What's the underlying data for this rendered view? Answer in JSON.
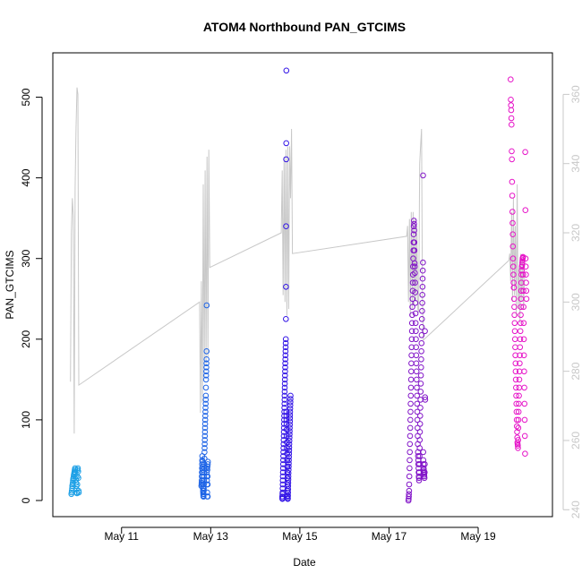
{
  "chart_data": {
    "type": "scatter",
    "title": "ATOM4 Northbound PAN_GTCIMS",
    "xlabel": "Date",
    "ylabel": "PAN_GTCIMS",
    "x_range": [
      "2019-05-09T11:00",
      "2019-05-20T16:00"
    ],
    "x_ticks": [
      {
        "date": "2019-05-11",
        "label": "May 11"
      },
      {
        "date": "2019-05-13",
        "label": "May 13"
      },
      {
        "date": "2019-05-15",
        "label": "May 15"
      },
      {
        "date": "2019-05-17",
        "label": "May 17"
      },
      {
        "date": "2019-05-19",
        "label": "May 19"
      }
    ],
    "ylim": [
      -20,
      555
    ],
    "y_ticks": [
      0,
      100,
      200,
      300,
      400,
      500
    ],
    "y2lim": [
      238,
      372
    ],
    "y2_ticks": [
      240,
      260,
      280,
      300,
      320,
      340,
      360
    ],
    "grid": false,
    "colors": {
      "frame": "#000000",
      "secondary_axis": "#c8c8c8",
      "secondary_line": "#c8c8c8"
    },
    "series": [
      {
        "color": "#1ea0e6",
        "x_start": "2019-05-09T21:00",
        "x_end": "2019-05-10T01:00",
        "values": [
          8,
          10,
          12,
          15,
          18,
          20,
          22,
          25,
          27,
          28,
          30,
          32,
          33,
          35,
          36,
          38,
          40,
          38,
          35,
          30,
          26,
          22,
          18,
          14,
          10,
          9,
          20,
          30,
          38,
          40,
          36,
          28,
          12,
          10
        ]
      },
      {
        "color": "#1e64e6",
        "x_start": "2019-05-12T19:00",
        "x_end": "2019-05-12T22:30",
        "values": [
          18,
          20,
          22,
          25,
          30,
          35,
          40,
          45,
          50,
          55,
          48,
          42,
          38,
          35,
          30,
          25,
          20,
          15,
          12,
          10,
          8,
          6,
          5,
          5,
          8,
          12,
          15,
          20,
          25,
          30,
          35,
          40,
          45,
          52,
          60,
          65,
          70,
          75,
          80,
          85,
          90,
          95,
          100,
          105,
          110,
          115,
          120,
          125,
          130,
          140,
          150,
          155,
          160,
          165,
          170,
          175,
          185,
          242,
          40,
          35,
          30,
          25,
          20,
          10,
          5,
          38,
          42,
          30,
          20,
          5,
          45,
          48
        ]
      },
      {
        "color": "#3214e6",
        "x_start": "2019-05-14T14:30",
        "x_end": "2019-05-14T19:00",
        "values": [
          5,
          3,
          2,
          8,
          10,
          15,
          20,
          25,
          30,
          35,
          40,
          45,
          50,
          55,
          60,
          65,
          70,
          75,
          80,
          85,
          90,
          95,
          100,
          105,
          110,
          115,
          120,
          125,
          130,
          135,
          140,
          145,
          150,
          155,
          160,
          165,
          170,
          175,
          180,
          185,
          190,
          195,
          200,
          225,
          265,
          340,
          423,
          443,
          533,
          110,
          105,
          100,
          95,
          88,
          80,
          72,
          65,
          58,
          50,
          42,
          35,
          28,
          20,
          12,
          5,
          2,
          3,
          6,
          10,
          14,
          18,
          22,
          26,
          30,
          34,
          38,
          42,
          46,
          50,
          54,
          58,
          62,
          66,
          70,
          74,
          78,
          82,
          86,
          90,
          94,
          98,
          102,
          106,
          110,
          114,
          118,
          122,
          126,
          130
        ]
      },
      {
        "color": "#8214c8",
        "x_start": "2019-05-17T10:30",
        "x_end": "2019-05-17T19:30",
        "values": [
          0,
          2,
          5,
          8,
          12,
          20,
          30,
          40,
          50,
          60,
          70,
          80,
          90,
          100,
          110,
          120,
          130,
          140,
          150,
          160,
          170,
          180,
          190,
          200,
          210,
          220,
          230,
          240,
          250,
          260,
          270,
          280,
          290,
          300,
          310,
          320,
          330,
          340,
          347,
          343,
          335,
          320,
          310,
          294,
          290,
          282,
          270,
          258,
          245,
          232,
          220,
          210,
          200,
          190,
          180,
          170,
          160,
          150,
          140,
          130,
          120,
          110,
          100,
          90,
          80,
          70,
          60,
          55,
          50,
          45,
          40,
          35,
          30,
          28,
          25,
          35,
          45,
          55,
          65,
          75,
          85,
          95,
          105,
          115,
          125,
          135,
          145,
          155,
          165,
          175,
          185,
          195,
          205,
          215,
          225,
          235,
          245,
          255,
          265,
          275,
          285,
          295,
          403,
          60,
          50,
          45,
          40,
          38,
          36,
          34,
          32,
          30,
          28,
          35,
          45,
          210,
          128,
          125
        ]
      },
      {
        "color": "#e614c8",
        "x_start": "2019-05-19T17:30",
        "x_end": "2019-05-20T02:00",
        "values": [
          522,
          497,
          490,
          484,
          474,
          466,
          433,
          423,
          395,
          378,
          358,
          344,
          330,
          315,
          300,
          290,
          280,
          270,
          264,
          264,
          250,
          240,
          230,
          220,
          210,
          200,
          190,
          180,
          170,
          160,
          150,
          140,
          130,
          120,
          110,
          100,
          92,
          85,
          78,
          72,
          70,
          68,
          65,
          75,
          90,
          100,
          110,
          120,
          130,
          140,
          150,
          160,
          170,
          180,
          190,
          200,
          210,
          220,
          230,
          240,
          250,
          260,
          270,
          280,
          285,
          290,
          292,
          295,
          298,
          300,
          301,
          302,
          280,
          260,
          240,
          220,
          200,
          180,
          160,
          140,
          120,
          100,
          80,
          58,
          432,
          360,
          300,
          290,
          280,
          270,
          260,
          250
        ]
      }
    ],
    "secondary_line": {
      "points": [
        [
          "2019-05-09T20:30",
          277
        ],
        [
          "2019-05-09T21:00",
          320
        ],
        [
          "2019-05-09T21:30",
          330
        ],
        [
          "2019-05-09T22:00",
          325
        ],
        [
          "2019-05-09T22:30",
          262
        ],
        [
          "2019-05-09T23:00",
          333
        ],
        [
          "2019-05-09T23:30",
          350
        ],
        [
          "2019-05-10T00:00",
          362
        ],
        [
          "2019-05-10T00:30",
          360
        ],
        [
          "2019-05-10T01:00",
          276
        ],
        [
          "2019-05-12T18:00",
          300
        ],
        [
          "2019-05-12T18:30",
          268
        ],
        [
          "2019-05-12T19:00",
          306
        ],
        [
          "2019-05-12T19:30",
          271
        ],
        [
          "2019-05-12T20:00",
          334
        ],
        [
          "2019-05-12T20:30",
          278
        ],
        [
          "2019-05-12T21:00",
          338
        ],
        [
          "2019-05-12T21:30",
          282
        ],
        [
          "2019-05-12T22:00",
          342
        ],
        [
          "2019-05-12T22:30",
          284
        ],
        [
          "2019-05-12T23:00",
          344
        ],
        [
          "2019-05-12T23:30",
          310
        ],
        [
          "2019-05-14T14:00",
          320
        ],
        [
          "2019-05-14T14:30",
          338
        ],
        [
          "2019-05-14T15:00",
          302
        ],
        [
          "2019-05-14T15:30",
          342
        ],
        [
          "2019-05-14T16:00",
          300
        ],
        [
          "2019-05-14T16:30",
          344
        ],
        [
          "2019-05-14T17:00",
          296
        ],
        [
          "2019-05-14T17:30",
          345
        ],
        [
          "2019-05-14T18:00",
          298
        ],
        [
          "2019-05-14T18:30",
          345
        ],
        [
          "2019-05-14T19:00",
          330
        ],
        [
          "2019-05-14T19:30",
          350
        ],
        [
          "2019-05-14T20:00",
          314
        ],
        [
          "2019-05-17T09:30",
          319
        ],
        [
          "2019-05-17T10:00",
          322
        ],
        [
          "2019-05-17T10:30",
          300
        ],
        [
          "2019-05-17T11:00",
          324
        ],
        [
          "2019-05-17T11:30",
          296
        ],
        [
          "2019-05-17T12:00",
          326
        ],
        [
          "2019-05-17T12:30",
          298
        ],
        [
          "2019-05-17T13:00",
          326
        ],
        [
          "2019-05-17T13:30",
          299
        ],
        [
          "2019-05-17T14:00",
          324
        ],
        [
          "2019-05-17T14:30",
          300
        ],
        [
          "2019-05-17T15:00",
          322
        ],
        [
          "2019-05-17T15:30",
          298
        ],
        [
          "2019-05-17T16:00",
          297
        ],
        [
          "2019-05-17T16:30",
          340
        ],
        [
          "2019-05-17T17:00",
          345
        ],
        [
          "2019-05-17T17:30",
          350
        ],
        [
          "2019-05-17T18:00",
          300
        ],
        [
          "2019-05-17T18:30",
          289
        ],
        [
          "2019-05-19T16:30",
          312
        ],
        [
          "2019-05-19T17:00",
          314
        ],
        [
          "2019-05-19T17:30",
          306
        ],
        [
          "2019-05-19T18:00",
          326
        ],
        [
          "2019-05-19T18:30",
          300
        ],
        [
          "2019-05-19T19:00",
          330
        ],
        [
          "2019-05-19T19:30",
          302
        ],
        [
          "2019-05-19T20:00",
          322
        ],
        [
          "2019-05-19T20:30",
          296
        ],
        [
          "2019-05-19T21:00",
          334
        ],
        [
          "2019-05-19T21:30",
          298
        ],
        [
          "2019-05-19T22:00",
          310
        ],
        [
          "2019-05-19T22:30",
          294
        ],
        [
          "2019-05-19T23:00",
          314
        ],
        [
          "2019-05-19T23:30",
          300
        ],
        [
          "2019-05-20T00:00",
          312
        ],
        [
          "2019-05-20T00:30",
          298
        ],
        [
          "2019-05-20T01:00",
          308
        ]
      ]
    }
  }
}
